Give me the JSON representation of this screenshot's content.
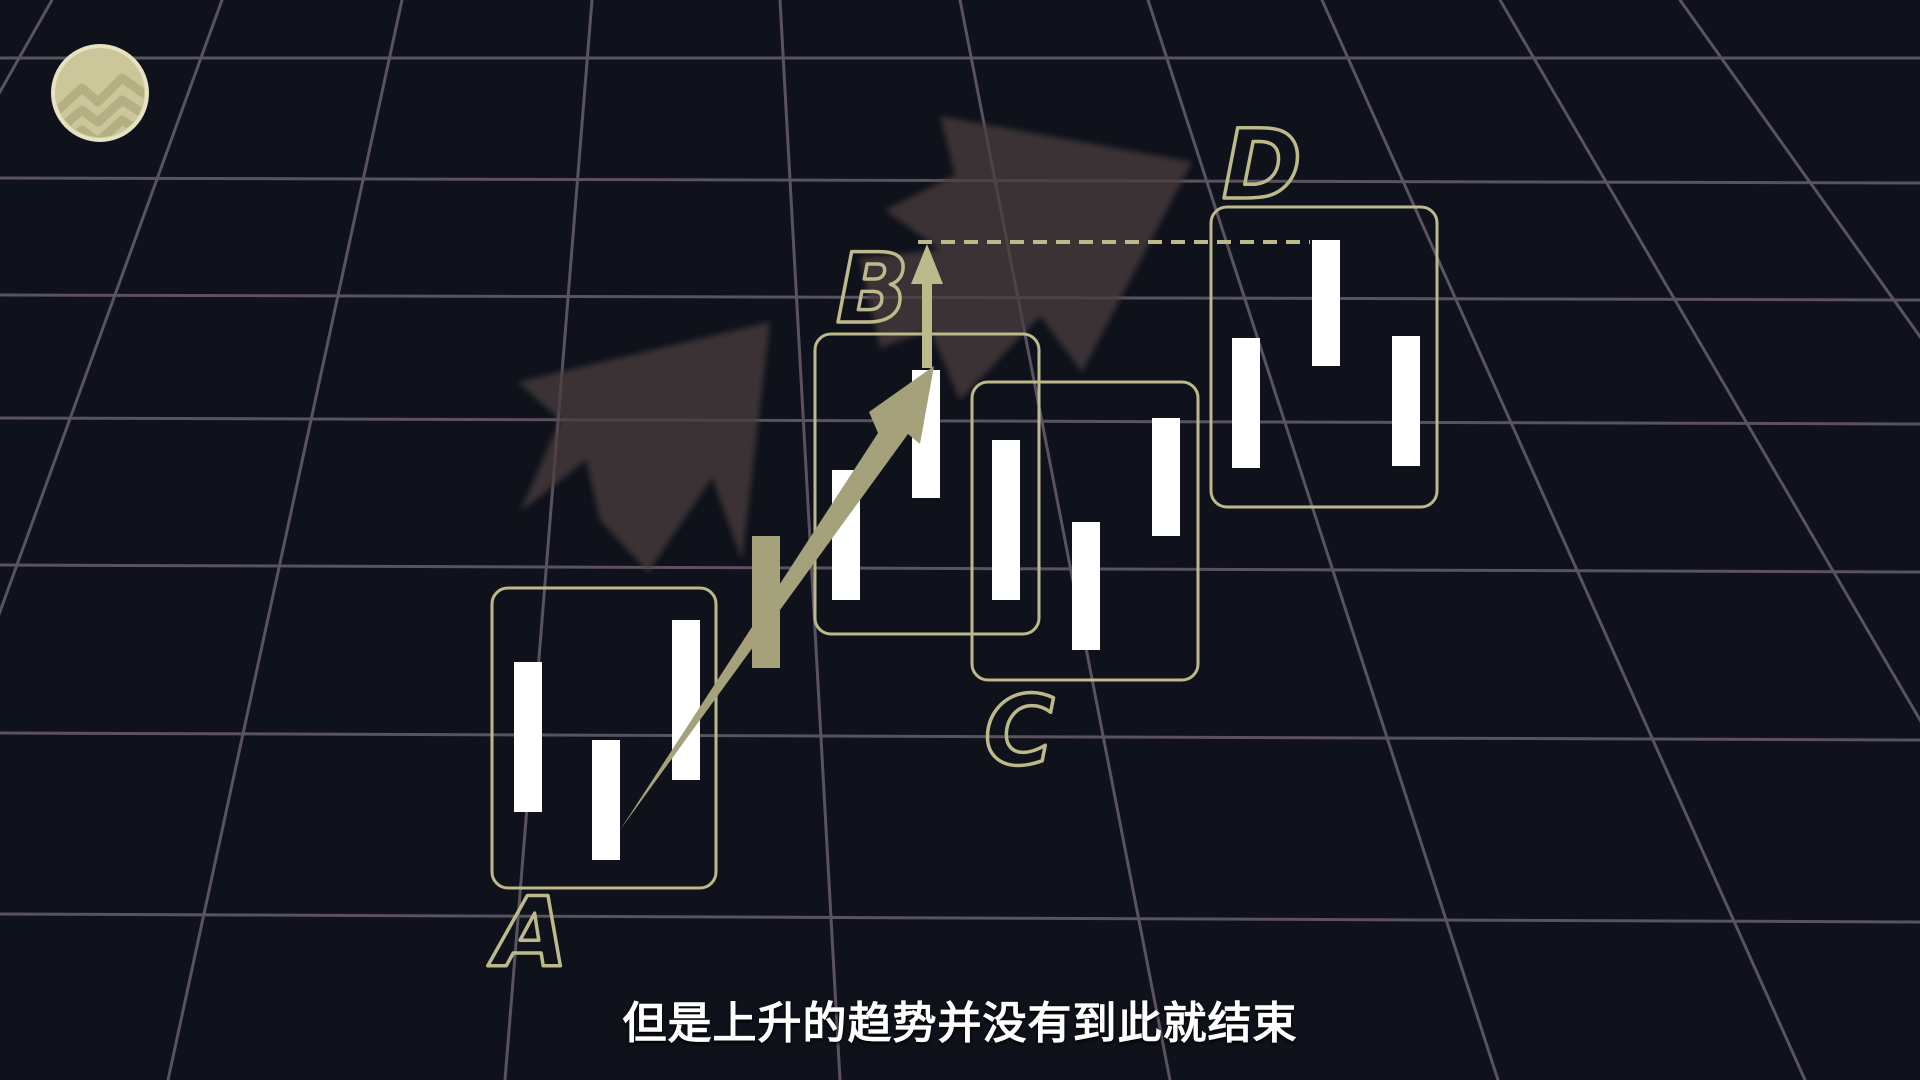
{
  "diagram": {
    "colors": {
      "background": "#0f121b",
      "grid": "#5a5260",
      "accent": "#bcb98a",
      "arrow_fill": "#a5a17a",
      "ghost_arrow": "#4a3c3e",
      "candle": "#ffffff"
    },
    "icons": [
      "wave-logo-icon"
    ],
    "labels": {
      "a": "A",
      "b": "B",
      "c": "C",
      "d": "D"
    }
  },
  "caption": {
    "text": "但是上升的趋势并没有到此就结束"
  }
}
